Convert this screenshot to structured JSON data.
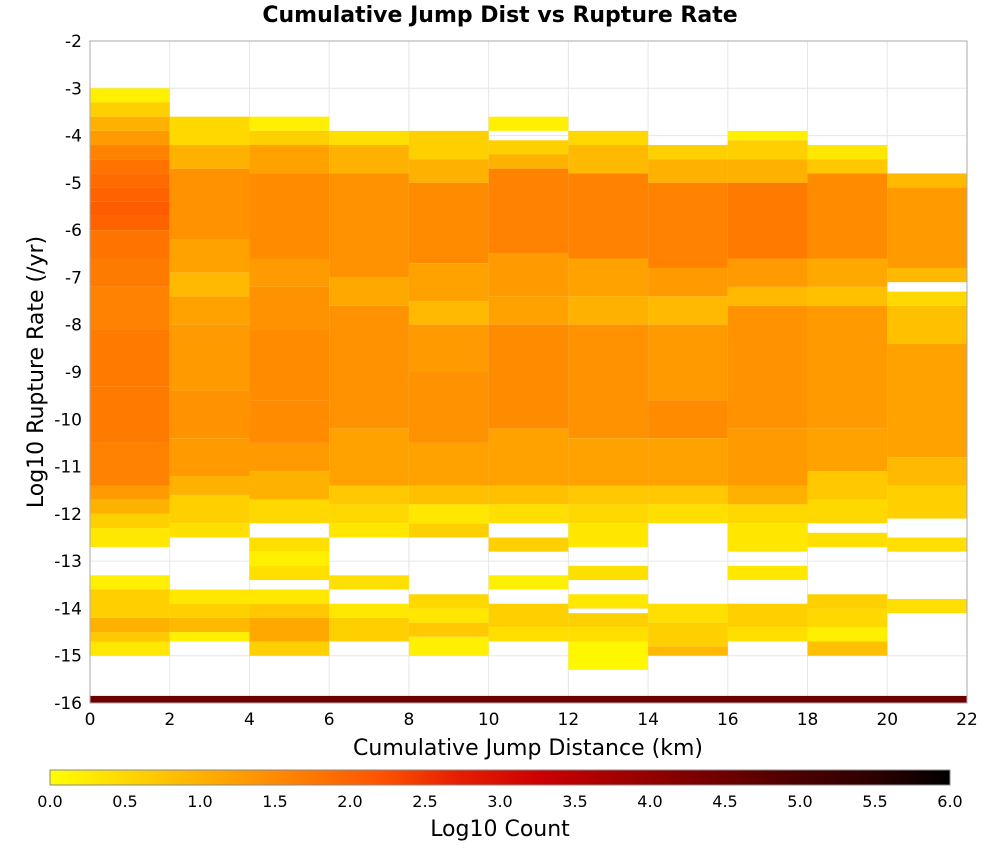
{
  "chart_data": {
    "type": "heatmap",
    "title": "Cumulative Jump Dist vs Rupture Rate",
    "xlabel": "Cumulative Jump Distance (km)",
    "ylabel": "Log10 Rupture Rate (/yr)",
    "xlim": [
      0,
      22
    ],
    "ylim": [
      -16,
      -2
    ],
    "x_ticks": [
      "0",
      "2",
      "4",
      "6",
      "8",
      "10",
      "12",
      "14",
      "16",
      "18",
      "20",
      "22"
    ],
    "y_ticks": [
      "-2",
      "-3",
      "-4",
      "-5",
      "-6",
      "-7",
      "-8",
      "-9",
      "-10",
      "-11",
      "-12",
      "-13",
      "-14",
      "-15",
      "-16"
    ],
    "x_bin_width": 2,
    "y_bin_height": 0.3,
    "grid": true,
    "colorbar": {
      "label": "Log10 Count",
      "range": [
        0,
        6
      ],
      "ticks": [
        "0.0",
        "0.5",
        "1.0",
        "1.5",
        "2.0",
        "2.5",
        "3.0",
        "3.5",
        "4.0",
        "4.5",
        "5.0",
        "5.5",
        "6.0"
      ],
      "colors": [
        "#ffff00",
        "#ffd400",
        "#ffaa00",
        "#ff8000",
        "#ff5500",
        "#e61e00",
        "#cc0000",
        "#a00000",
        "#780000",
        "#500000",
        "#300000",
        "#000000"
      ]
    },
    "column_profiles": [
      {
        "x_start": 0,
        "rows": [
          [
            -3.3,
            -3.0,
            0.2
          ],
          [
            -3.6,
            -3.3,
            0.6
          ],
          [
            -3.9,
            -3.6,
            1.0
          ],
          [
            -4.2,
            -3.9,
            1.3
          ],
          [
            -4.5,
            -4.2,
            1.6
          ],
          [
            -4.8,
            -4.5,
            1.8
          ],
          [
            -5.1,
            -4.8,
            1.9
          ],
          [
            -5.4,
            -5.1,
            2.0
          ],
          [
            -5.7,
            -5.4,
            2.1
          ],
          [
            -6.0,
            -5.7,
            2.0
          ],
          [
            -6.6,
            -6.0,
            1.8
          ],
          [
            -7.2,
            -6.6,
            1.7
          ],
          [
            -8.1,
            -7.2,
            1.6
          ],
          [
            -9.3,
            -8.1,
            1.7
          ],
          [
            -10.5,
            -9.3,
            1.7
          ],
          [
            -11.4,
            -10.5,
            1.6
          ],
          [
            -11.7,
            -11.4,
            1.3
          ],
          [
            -12.0,
            -11.7,
            1.0
          ],
          [
            -12.3,
            -12.0,
            0.6
          ],
          [
            -12.7,
            -12.3,
            0.3
          ],
          [
            -13.6,
            -13.3,
            0.2
          ],
          [
            -14.2,
            -13.6,
            0.6
          ],
          [
            -14.5,
            -14.2,
            1.0
          ],
          [
            -14.7,
            -14.5,
            0.7
          ],
          [
            -15.0,
            -14.7,
            0.3
          ]
        ]
      },
      {
        "x_start": 2,
        "rows": [
          [
            -4.2,
            -3.6,
            0.5
          ],
          [
            -4.7,
            -4.2,
            1.0
          ],
          [
            -6.2,
            -4.7,
            1.4
          ],
          [
            -6.9,
            -6.2,
            1.2
          ],
          [
            -7.4,
            -6.9,
            0.9
          ],
          [
            -8.0,
            -7.4,
            1.2
          ],
          [
            -9.4,
            -8.0,
            1.3
          ],
          [
            -10.4,
            -9.4,
            1.4
          ],
          [
            -11.2,
            -10.4,
            1.3
          ],
          [
            -11.6,
            -11.2,
            1.0
          ],
          [
            -12.2,
            -11.6,
            0.6
          ],
          [
            -12.5,
            -12.2,
            0.4
          ],
          [
            -13.9,
            -13.6,
            0.3
          ],
          [
            -14.2,
            -13.9,
            0.6
          ],
          [
            -14.5,
            -14.2,
            0.9
          ],
          [
            -14.7,
            -14.5,
            0.2
          ]
        ]
      },
      {
        "x_start": 4,
        "rows": [
          [
            -3.9,
            -3.6,
            0.2
          ],
          [
            -4.2,
            -3.9,
            0.6
          ],
          [
            -4.8,
            -4.2,
            1.2
          ],
          [
            -6.6,
            -4.8,
            1.5
          ],
          [
            -7.2,
            -6.6,
            1.3
          ],
          [
            -8.1,
            -7.2,
            1.4
          ],
          [
            -9.6,
            -8.1,
            1.5
          ],
          [
            -10.5,
            -9.6,
            1.5
          ],
          [
            -11.1,
            -10.5,
            1.3
          ],
          [
            -11.7,
            -11.1,
            1.0
          ],
          [
            -12.2,
            -11.7,
            0.5
          ],
          [
            -12.8,
            -12.5,
            0.4
          ],
          [
            -13.1,
            -12.8,
            0.2
          ],
          [
            -13.4,
            -13.1,
            0.4
          ],
          [
            -13.9,
            -13.6,
            0.3
          ],
          [
            -14.2,
            -13.9,
            0.7
          ],
          [
            -14.7,
            -14.2,
            1.1
          ],
          [
            -15.0,
            -14.7,
            0.6
          ]
        ]
      },
      {
        "x_start": 6,
        "rows": [
          [
            -4.2,
            -3.9,
            0.4
          ],
          [
            -4.8,
            -4.2,
            1.0
          ],
          [
            -7.0,
            -4.8,
            1.4
          ],
          [
            -7.6,
            -7.0,
            1.1
          ],
          [
            -10.2,
            -7.6,
            1.4
          ],
          [
            -11.4,
            -10.2,
            1.2
          ],
          [
            -11.8,
            -11.4,
            0.7
          ],
          [
            -12.2,
            -11.8,
            0.5
          ],
          [
            -12.5,
            -12.2,
            0.3
          ],
          [
            -13.6,
            -13.3,
            0.4
          ],
          [
            -14.7,
            -14.2,
            0.6
          ],
          [
            -14.2,
            -13.9,
            0.3
          ]
        ]
      },
      {
        "x_start": 8,
        "rows": [
          [
            -4.5,
            -3.9,
            0.6
          ],
          [
            -5.0,
            -4.5,
            1.0
          ],
          [
            -6.7,
            -5.0,
            1.5
          ],
          [
            -7.5,
            -6.7,
            1.2
          ],
          [
            -8.0,
            -7.5,
            0.9
          ],
          [
            -9.0,
            -8.0,
            1.3
          ],
          [
            -10.5,
            -9.0,
            1.4
          ],
          [
            -11.4,
            -10.5,
            1.2
          ],
          [
            -11.8,
            -11.4,
            0.8
          ],
          [
            -12.2,
            -11.8,
            0.3
          ],
          [
            -12.5,
            -12.2,
            0.6
          ],
          [
            -14.0,
            -13.7,
            0.5
          ],
          [
            -14.3,
            -14.0,
            0.3
          ],
          [
            -14.6,
            -14.3,
            0.7
          ],
          [
            -15.0,
            -14.6,
            0.2
          ]
        ]
      },
      {
        "x_start": 10,
        "rows": [
          [
            -3.9,
            -3.6,
            0.2
          ],
          [
            -4.4,
            -4.1,
            0.6
          ],
          [
            -4.7,
            -4.4,
            1.0
          ],
          [
            -6.5,
            -4.7,
            1.6
          ],
          [
            -7.4,
            -6.5,
            1.3
          ],
          [
            -8.0,
            -7.4,
            1.2
          ],
          [
            -10.2,
            -8.0,
            1.5
          ],
          [
            -11.4,
            -10.2,
            1.2
          ],
          [
            -11.8,
            -11.4,
            0.8
          ],
          [
            -12.2,
            -11.8,
            0.4
          ],
          [
            -12.8,
            -12.5,
            0.6
          ],
          [
            -13.6,
            -13.3,
            0.2
          ],
          [
            -14.4,
            -13.9,
            0.6
          ],
          [
            -14.7,
            -14.4,
            0.4
          ]
        ]
      },
      {
        "x_start": 12,
        "rows": [
          [
            -4.2,
            -3.9,
            0.5
          ],
          [
            -4.8,
            -4.2,
            0.9
          ],
          [
            -6.6,
            -4.8,
            1.6
          ],
          [
            -7.4,
            -6.6,
            1.2
          ],
          [
            -8.0,
            -7.4,
            1.0
          ],
          [
            -10.4,
            -8.0,
            1.4
          ],
          [
            -11.4,
            -10.4,
            1.2
          ],
          [
            -11.8,
            -11.4,
            0.7
          ],
          [
            -12.2,
            -11.8,
            0.5
          ],
          [
            -12.7,
            -12.2,
            0.3
          ],
          [
            -13.4,
            -13.1,
            0.4
          ],
          [
            -14.0,
            -13.7,
            0.3
          ],
          [
            -14.4,
            -14.1,
            0.6
          ],
          [
            -14.7,
            -14.4,
            0.4
          ],
          [
            -15.3,
            -14.7,
            0.1
          ]
        ]
      },
      {
        "x_start": 14,
        "rows": [
          [
            -4.5,
            -4.2,
            0.6
          ],
          [
            -5.0,
            -4.5,
            1.0
          ],
          [
            -6.8,
            -5.0,
            1.6
          ],
          [
            -7.4,
            -6.8,
            1.3
          ],
          [
            -8.0,
            -7.4,
            0.9
          ],
          [
            -9.6,
            -8.0,
            1.3
          ],
          [
            -10.4,
            -9.6,
            1.5
          ],
          [
            -11.4,
            -10.4,
            1.2
          ],
          [
            -11.8,
            -11.4,
            0.7
          ],
          [
            -12.2,
            -11.8,
            0.4
          ],
          [
            -14.3,
            -13.9,
            0.4
          ],
          [
            -14.8,
            -14.3,
            0.6
          ],
          [
            -15.0,
            -14.8,
            0.9
          ]
        ]
      },
      {
        "x_start": 16,
        "rows": [
          [
            -4.1,
            -3.9,
            0.2
          ],
          [
            -4.5,
            -4.1,
            0.6
          ],
          [
            -5.0,
            -4.5,
            1.0
          ],
          [
            -6.6,
            -5.0,
            1.7
          ],
          [
            -7.2,
            -6.6,
            1.3
          ],
          [
            -7.6,
            -7.2,
            0.9
          ],
          [
            -10.2,
            -7.6,
            1.4
          ],
          [
            -11.4,
            -10.2,
            1.3
          ],
          [
            -11.8,
            -11.4,
            1.0
          ],
          [
            -12.2,
            -11.8,
            0.5
          ],
          [
            -12.8,
            -12.2,
            0.3
          ],
          [
            -13.4,
            -13.1,
            0.3
          ],
          [
            -14.4,
            -13.9,
            0.6
          ],
          [
            -14.7,
            -14.4,
            0.4
          ]
        ]
      },
      {
        "x_start": 18,
        "rows": [
          [
            -4.5,
            -4.2,
            0.3
          ],
          [
            -4.8,
            -4.5,
            0.7
          ],
          [
            -6.6,
            -4.8,
            1.5
          ],
          [
            -7.2,
            -6.6,
            1.1
          ],
          [
            -7.6,
            -7.2,
            0.8
          ],
          [
            -10.2,
            -7.6,
            1.3
          ],
          [
            -11.1,
            -10.2,
            1.2
          ],
          [
            -11.7,
            -11.1,
            0.7
          ],
          [
            -12.2,
            -11.7,
            0.5
          ],
          [
            -12.7,
            -12.4,
            0.4
          ],
          [
            -14.0,
            -13.7,
            0.6
          ],
          [
            -14.4,
            -14.0,
            0.5
          ],
          [
            -14.7,
            -14.4,
            0.2
          ],
          [
            -15.0,
            -14.7,
            0.8
          ]
        ]
      },
      {
        "x_start": 20,
        "rows": [
          [
            -5.1,
            -4.8,
            0.9
          ],
          [
            -6.8,
            -5.1,
            1.3
          ],
          [
            -7.1,
            -6.8,
            0.9
          ],
          [
            -7.6,
            -7.3,
            0.5
          ],
          [
            -8.4,
            -7.6,
            0.8
          ],
          [
            -10.8,
            -8.4,
            1.2
          ],
          [
            -11.4,
            -10.8,
            0.9
          ],
          [
            -12.1,
            -11.4,
            0.6
          ],
          [
            -12.8,
            -12.5,
            0.4
          ],
          [
            -14.1,
            -13.8,
            0.4
          ]
        ]
      }
    ],
    "bottom_band": {
      "x_range": [
        0,
        22
      ],
      "y_range": [
        -16,
        -15.85
      ],
      "value": 4.5
    }
  }
}
